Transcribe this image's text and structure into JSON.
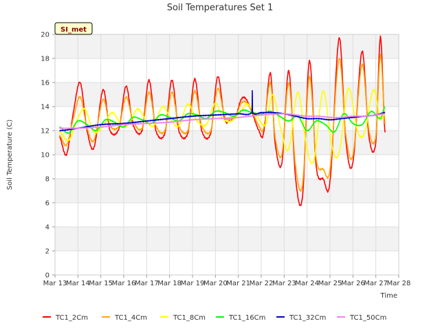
{
  "chart_data": {
    "type": "line",
    "title": "Soil Temperatures Set 1",
    "xlabel": "Time",
    "ylabel": "Soil Temperature (C)",
    "site_label": "SI_met",
    "ylim": [
      0,
      20
    ],
    "xlim": [
      0,
      15
    ],
    "y_ticks": [
      0,
      2,
      4,
      6,
      8,
      10,
      12,
      14,
      16,
      18,
      20
    ],
    "x_ticks": [
      "Mar 13",
      "Mar 14",
      "Mar 15",
      "Mar 16",
      "Mar 17",
      "Mar 18",
      "Mar 19",
      "Mar 20",
      "Mar 21",
      "Mar 22",
      "Mar 23",
      "Mar 24",
      "Mar 25",
      "Mar 26",
      "Mar 27",
      "Mar 28"
    ],
    "grid": true,
    "legend_position": "bottom",
    "x_unit": "days since Mar 13",
    "series": [
      {
        "name": "TC1_2Cm",
        "color": "#ff0000",
        "x": [
          0.2,
          0.5,
          0.8,
          1.1,
          1.4,
          1.7,
          2.1,
          2.4,
          2.8,
          3.1,
          3.4,
          3.8,
          4.1,
          4.4,
          4.8,
          5.1,
          5.4,
          5.8,
          6.1,
          6.4,
          6.8,
          7.1,
          7.4,
          7.6,
          7.9,
          8.1,
          8.3,
          8.6,
          8.9,
          9.1,
          9.4,
          9.6,
          9.9,
          10.2,
          10.5,
          10.8,
          11.1,
          11.4,
          11.7,
          12.0,
          12.4,
          12.7,
          13.0,
          13.4,
          13.7,
          14.0,
          14.2,
          14.4
        ],
        "values": [
          11.5,
          10.0,
          13.5,
          16.0,
          12.0,
          10.6,
          15.4,
          12.0,
          12.2,
          15.7,
          12.5,
          12.0,
          16.2,
          12.0,
          11.8,
          16.2,
          12.0,
          11.8,
          16.3,
          12.0,
          11.8,
          16.5,
          13.0,
          12.8,
          13.2,
          14.5,
          14.7,
          13.5,
          12.0,
          11.8,
          16.8,
          11.0,
          9.3,
          17.0,
          8.0,
          6.5,
          17.8,
          9.0,
          8.0,
          7.8,
          19.7,
          11.0,
          9.4,
          18.6,
          11.5,
          11.0,
          19.8,
          11.8
        ]
      },
      {
        "name": "TC1_4Cm",
        "color": "#ffa500",
        "x": [
          0.2,
          0.5,
          0.8,
          1.1,
          1.4,
          1.7,
          2.1,
          2.4,
          2.8,
          3.1,
          3.4,
          3.8,
          4.1,
          4.4,
          4.8,
          5.1,
          5.4,
          5.8,
          6.1,
          6.4,
          6.8,
          7.1,
          7.4,
          7.6,
          7.9,
          8.1,
          8.3,
          8.6,
          8.9,
          9.1,
          9.4,
          9.6,
          9.9,
          10.2,
          10.5,
          10.8,
          11.1,
          11.4,
          11.7,
          12.0,
          12.4,
          12.7,
          13.0,
          13.4,
          13.7,
          14.0,
          14.2,
          14.4
        ],
        "values": [
          11.6,
          10.8,
          13.0,
          14.8,
          12.2,
          11.2,
          14.6,
          12.4,
          12.4,
          14.8,
          12.8,
          12.2,
          15.2,
          12.4,
          12.0,
          15.2,
          12.4,
          12.0,
          15.3,
          12.4,
          12.0,
          15.5,
          13.2,
          13.0,
          13.2,
          14.2,
          14.4,
          13.6,
          12.4,
          12.2,
          16.0,
          11.5,
          10.0,
          16.0,
          9.0,
          7.5,
          16.5,
          9.6,
          8.8,
          8.8,
          18.0,
          11.5,
          10.0,
          17.5,
          12.0,
          11.5,
          18.3,
          12.5
        ]
      },
      {
        "name": "TC1_8Cm",
        "color": "#ffff00",
        "x": [
          0.2,
          0.6,
          1.0,
          1.3,
          1.7,
          2.1,
          2.5,
          2.9,
          3.2,
          3.6,
          4.0,
          4.3,
          4.7,
          5.1,
          5.4,
          5.8,
          6.2,
          6.6,
          7.0,
          7.3,
          7.7,
          8.1,
          8.4,
          8.8,
          9.2,
          9.5,
          9.9,
          10.2,
          10.6,
          11.0,
          11.3,
          11.7,
          12.1,
          12.4,
          12.8,
          13.2,
          13.5,
          13.9,
          14.2,
          14.4
        ],
        "values": [
          11.9,
          11.2,
          13.0,
          13.8,
          11.9,
          12.4,
          13.5,
          12.5,
          12.5,
          13.8,
          12.8,
          12.4,
          14.0,
          12.8,
          12.4,
          14.2,
          12.8,
          12.5,
          14.3,
          13.0,
          12.8,
          13.6,
          14.2,
          13.2,
          12.5,
          15.0,
          11.8,
          10.5,
          15.2,
          10.5,
          9.6,
          15.3,
          10.6,
          10.2,
          15.5,
          12.0,
          11.8,
          15.4,
          13.0,
          13.5
        ]
      },
      {
        "name": "TC1_16Cm",
        "color": "#00ff00",
        "x": [
          0.2,
          0.6,
          1.0,
          1.4,
          1.8,
          2.2,
          2.6,
          3.0,
          3.4,
          3.8,
          4.2,
          4.6,
          5.0,
          5.4,
          5.8,
          6.2,
          6.6,
          7.0,
          7.4,
          7.8,
          8.2,
          8.6,
          9.0,
          9.4,
          9.8,
          10.2,
          10.6,
          11.0,
          11.4,
          11.8,
          12.2,
          12.6,
          13.0,
          13.4,
          13.8,
          14.2,
          14.4
        ],
        "values": [
          12.3,
          11.8,
          12.8,
          12.5,
          12.0,
          12.9,
          12.7,
          12.3,
          13.1,
          12.9,
          12.6,
          13.3,
          13.1,
          12.8,
          13.4,
          13.3,
          13.0,
          13.6,
          13.5,
          13.2,
          13.7,
          13.5,
          13.4,
          13.6,
          13.2,
          12.8,
          13.2,
          12.0,
          12.8,
          12.5,
          11.9,
          13.4,
          12.6,
          12.5,
          13.6,
          13.0,
          14.0
        ]
      },
      {
        "name": "TC1_32Cm",
        "color": "#0000cd",
        "x": [
          0.2,
          1.0,
          2.0,
          3.0,
          4.0,
          5.0,
          6.0,
          7.0,
          8.0,
          8.6,
          8.61,
          8.62,
          9.0,
          9.5,
          10.0,
          10.5,
          11.0,
          11.5,
          12.0,
          12.5,
          13.0,
          13.5,
          14.0,
          14.4
        ],
        "values": [
          12.0,
          12.2,
          12.5,
          12.6,
          12.8,
          13.0,
          13.2,
          13.3,
          13.4,
          13.5,
          15.3,
          13.5,
          13.5,
          13.5,
          13.4,
          13.2,
          13.0,
          13.0,
          12.9,
          13.0,
          13.1,
          13.2,
          13.3,
          13.5
        ]
      },
      {
        "name": "TC1_50Cm",
        "color": "#ee82ee",
        "x": [
          0.2,
          1.0,
          2.0,
          3.0,
          4.0,
          5.0,
          6.0,
          7.0,
          8.0,
          9.0,
          10.0,
          10.5,
          11.0,
          11.5,
          12.0,
          12.5,
          13.0,
          13.5,
          14.0,
          14.4
        ],
        "values": [
          12.2,
          12.2,
          12.3,
          12.5,
          12.6,
          12.7,
          12.9,
          13.0,
          13.1,
          13.3,
          13.4,
          13.3,
          13.2,
          13.2,
          13.1,
          13.1,
          13.2,
          13.2,
          13.3,
          13.4
        ]
      }
    ]
  }
}
